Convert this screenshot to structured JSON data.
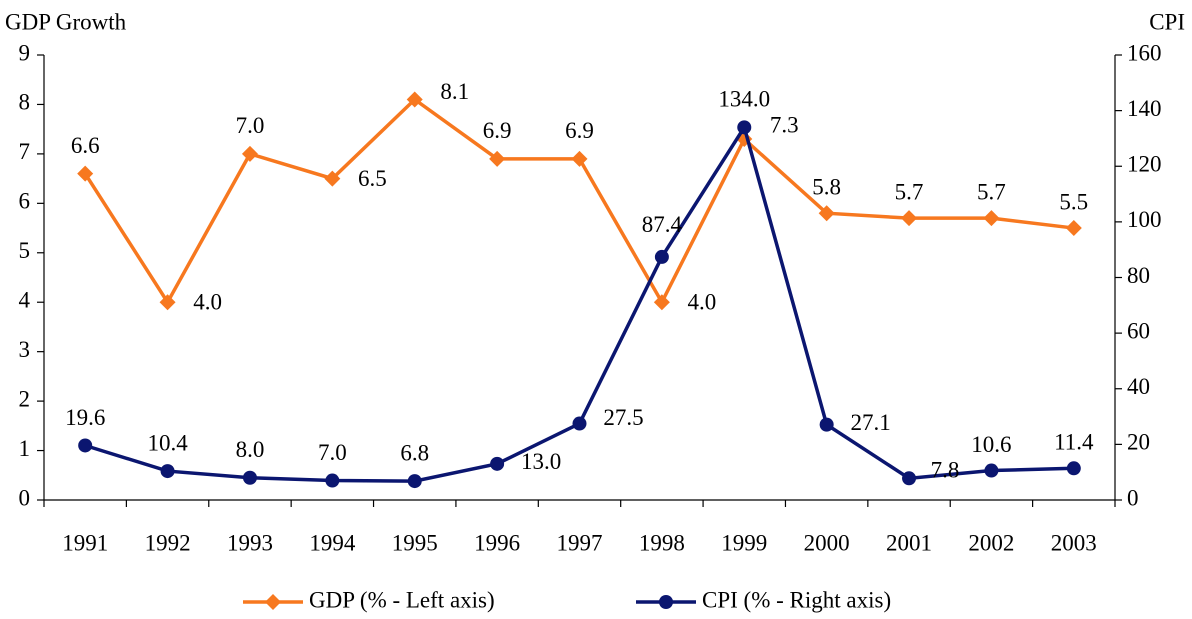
{
  "chart_data": {
    "type": "line",
    "y_label": "GDP Growth",
    "y2_label": "CPI",
    "categories": [
      "1991",
      "1992",
      "1993",
      "1994",
      "1995",
      "1996",
      "1997",
      "1998",
      "1999",
      "2000",
      "2001",
      "2002",
      "2003"
    ],
    "series": [
      {
        "name": "GDP (% - Left axis)",
        "color": "#f7781f",
        "marker": "diamond",
        "values": [
          6.6,
          4.0,
          7.0,
          6.5,
          8.1,
          6.9,
          6.9,
          4.0,
          7.3,
          5.8,
          5.7,
          5.7,
          5.5
        ],
        "value_labels": [
          "6.6",
          "4.0",
          "7.0",
          "6.5",
          "8.1",
          "6.9",
          "6.9",
          "4.0",
          "7.3",
          "5.8",
          "5.7",
          "5.7",
          "5.5"
        ]
      },
      {
        "name": "CPI (% - Right axis)",
        "color": "#0b1670",
        "marker": "circle",
        "axis": "y2",
        "values": [
          19.6,
          10.4,
          8.0,
          7.0,
          6.8,
          13.0,
          27.5,
          87.4,
          134.0,
          27.1,
          7.8,
          10.6,
          11.4
        ],
        "value_labels": [
          "19.6",
          "10.4",
          "8.0",
          "7.0",
          "6.8",
          "13.0",
          "27.5",
          "87.4",
          "134.0",
          "27.1",
          "7.8",
          "10.6",
          "11.4"
        ]
      }
    ],
    "ylim": [
      0,
      9
    ],
    "yticks": [
      0,
      1,
      2,
      3,
      4,
      5,
      6,
      7,
      8,
      9
    ],
    "y2lim": [
      0,
      160
    ],
    "y2ticks": [
      0,
      20,
      40,
      60,
      80,
      100,
      120,
      140,
      160
    ],
    "legend": "bottom"
  }
}
